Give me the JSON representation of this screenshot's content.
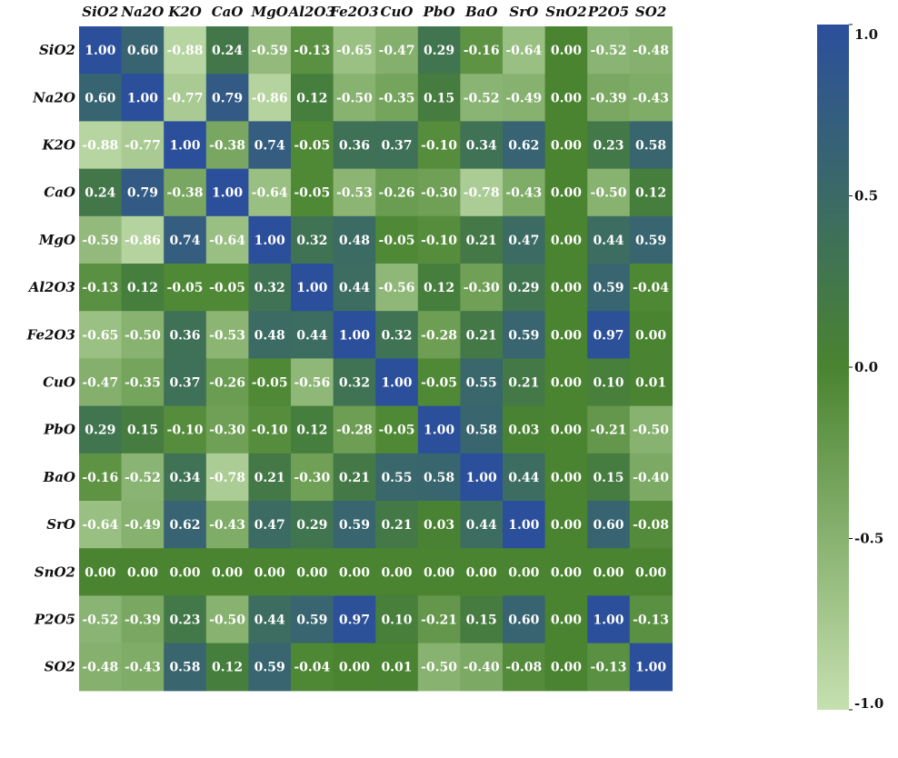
{
  "chart_data": {
    "type": "heatmap",
    "title": "",
    "xlabel": "",
    "ylabel": "",
    "x_categories": [
      "SiO2",
      "Na2O",
      "K2O",
      "CaO",
      "MgO",
      "Al2O3",
      "Fe2O3",
      "CuO",
      "PbO",
      "BaO",
      "SrO",
      "SnO2",
      "P2O5",
      "SO2"
    ],
    "y_categories": [
      "SiO2",
      "Na2O",
      "K2O",
      "CaO",
      "MgO",
      "Al2O3",
      "Fe2O3",
      "CuO",
      "PbO",
      "BaO",
      "SrO",
      "SnO2",
      "P2O5",
      "SO2"
    ],
    "values": [
      [
        1.0,
        0.6,
        -0.88,
        0.24,
        -0.59,
        -0.13,
        -0.65,
        -0.47,
        0.29,
        -0.16,
        -0.64,
        0.0,
        -0.52,
        -0.48
      ],
      [
        0.6,
        1.0,
        -0.77,
        0.79,
        -0.86,
        0.12,
        -0.5,
        -0.35,
        0.15,
        -0.52,
        -0.49,
        0.0,
        -0.39,
        -0.43
      ],
      [
        -0.88,
        -0.77,
        1.0,
        -0.38,
        0.74,
        -0.05,
        0.36,
        0.37,
        -0.1,
        0.34,
        0.62,
        0.0,
        0.23,
        0.58
      ],
      [
        0.24,
        0.79,
        -0.38,
        1.0,
        -0.64,
        -0.05,
        -0.53,
        -0.26,
        -0.3,
        -0.78,
        -0.43,
        0.0,
        -0.5,
        0.12
      ],
      [
        -0.59,
        -0.86,
        0.74,
        -0.64,
        1.0,
        0.32,
        0.48,
        -0.05,
        -0.1,
        0.21,
        0.47,
        0.0,
        0.44,
        0.59
      ],
      [
        -0.13,
        0.12,
        -0.05,
        -0.05,
        0.32,
        1.0,
        0.44,
        -0.56,
        0.12,
        -0.3,
        0.29,
        0.0,
        0.59,
        -0.04
      ],
      [
        -0.65,
        -0.5,
        0.36,
        -0.53,
        0.48,
        0.44,
        1.0,
        0.32,
        -0.28,
        0.21,
        0.59,
        0.0,
        0.97,
        0.0
      ],
      [
        -0.47,
        -0.35,
        0.37,
        -0.26,
        -0.05,
        -0.56,
        0.32,
        1.0,
        -0.05,
        0.55,
        0.21,
        0.0,
        0.1,
        0.01
      ],
      [
        0.29,
        0.15,
        -0.1,
        -0.3,
        -0.1,
        0.12,
        -0.28,
        -0.05,
        1.0,
        0.58,
        0.03,
        0.0,
        -0.21,
        -0.5
      ],
      [
        -0.16,
        -0.52,
        0.34,
        -0.78,
        0.21,
        -0.3,
        0.21,
        0.55,
        0.58,
        1.0,
        0.44,
        0.0,
        0.15,
        -0.4
      ],
      [
        -0.64,
        -0.49,
        0.62,
        -0.43,
        0.47,
        0.29,
        0.59,
        0.21,
        0.03,
        0.44,
        1.0,
        0.0,
        0.6,
        -0.08
      ],
      [
        0.0,
        0.0,
        0.0,
        0.0,
        0.0,
        0.0,
        0.0,
        0.0,
        0.0,
        0.0,
        0.0,
        0.0,
        0.0,
        0.0
      ],
      [
        -0.52,
        -0.39,
        0.23,
        -0.5,
        0.44,
        0.59,
        0.97,
        0.1,
        -0.21,
        0.15,
        0.6,
        0.0,
        1.0,
        -0.13
      ],
      [
        -0.48,
        -0.43,
        0.58,
        0.12,
        0.59,
        -0.04,
        0.0,
        0.01,
        -0.5,
        -0.4,
        -0.08,
        0.0,
        -0.13,
        1.0
      ]
    ],
    "value_range": [
      -1.0,
      1.0
    ],
    "colorbar": {
      "ticks": [
        1.0,
        0.5,
        0.0,
        -0.5,
        -1.0
      ],
      "tick_labels": [
        "1.0",
        "0.5",
        "0.0",
        "-0.5",
        "-1.0"
      ],
      "colors": {
        "low": "#c6e0b0",
        "mid": "#4a8430",
        "high": "#2c4f9c"
      },
      "placement": "right"
    },
    "grid": false,
    "x_labels_position": "top"
  }
}
